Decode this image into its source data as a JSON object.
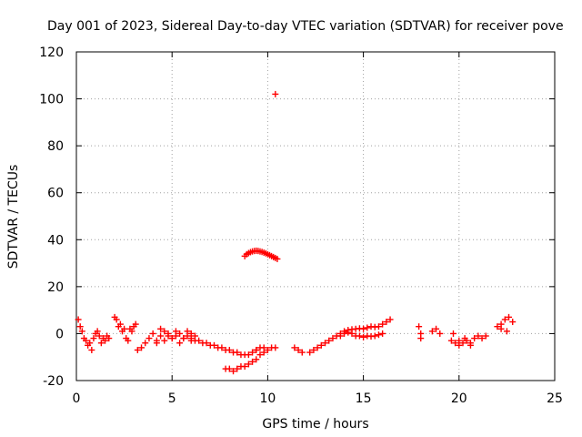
{
  "chart_data": {
    "type": "scatter",
    "title": "Day 001 of 2023, Sidereal Day-to-day VTEC variation (SDTVAR) for receiver pove",
    "xlabel": "GPS time / hours",
    "ylabel": "SDTVAR / TECUs",
    "xlim": [
      0,
      25
    ],
    "ylim": [
      -20,
      120
    ],
    "xticks": [
      "0",
      "5",
      "10",
      "15",
      "20",
      "25"
    ],
    "yticks": [
      "-20",
      "0",
      "20",
      "40",
      "60",
      "80",
      "100",
      "120"
    ],
    "grid": true,
    "marker": "plus",
    "series": [
      {
        "name": "SDTVAR",
        "color": "#ff0000",
        "x": [
          0.1,
          0.2,
          0.3,
          0.4,
          0.5,
          0.6,
          0.7,
          0.8,
          0.9,
          1.0,
          1.1,
          1.2,
          1.3,
          1.4,
          1.5,
          1.6,
          1.7,
          2.0,
          2.1,
          2.2,
          2.3,
          2.4,
          2.5,
          2.6,
          2.7,
          2.8,
          2.9,
          3.0,
          3.1,
          3.2,
          3.4,
          3.6,
          3.8,
          4.0,
          4.2,
          4.4,
          4.6,
          4.8,
          5.0,
          5.2,
          5.4,
          5.6,
          5.8,
          6.0,
          4.2,
          4.4,
          4.6,
          4.8,
          5.0,
          5.2,
          5.4,
          5.6,
          5.8,
          6.0,
          6.2,
          6.0,
          6.2,
          6.4,
          6.6,
          6.8,
          7.0,
          7.2,
          7.4,
          7.6,
          7.8,
          8.0,
          8.2,
          8.4,
          8.6,
          8.8,
          9.0,
          9.2,
          9.4,
          7.8,
          8.0,
          8.2,
          8.4,
          8.6,
          8.8,
          9.0,
          9.2,
          9.4,
          9.6,
          9.8,
          9.4,
          9.6,
          9.8,
          10.0,
          10.2,
          10.4,
          8.8,
          8.9,
          9.0,
          9.1,
          9.2,
          9.3,
          9.4,
          9.5,
          9.6,
          9.7,
          9.8,
          9.9,
          10.0,
          10.1,
          10.2,
          10.3,
          10.4,
          10.5,
          10.4,
          11.4,
          11.6,
          11.8,
          12.2,
          12.4,
          12.6,
          12.8,
          13.0,
          13.2,
          13.4,
          13.6,
          13.8,
          14.0,
          14.2,
          14.4,
          14.6,
          14.8,
          15.0,
          15.2,
          15.4,
          15.6,
          15.8,
          16.0,
          16.2,
          16.4,
          13.8,
          14.0,
          14.2,
          14.4,
          14.6,
          14.8,
          15.0,
          15.2,
          15.4,
          15.6,
          15.8,
          16.0,
          17.9,
          18.0,
          18.0,
          18.6,
          18.8,
          19.0,
          19.6,
          19.8,
          20.0,
          20.2,
          20.4,
          20.6,
          20.8,
          21.0,
          21.2,
          19.7,
          20.0,
          20.3,
          20.6,
          21.4,
          22.0,
          22.2,
          22.4,
          22.6,
          22.8,
          22.2,
          22.5
        ],
        "y": [
          6,
          3,
          1,
          -2,
          -3,
          -5,
          -4,
          -7,
          -2,
          0,
          1,
          -1,
          -4,
          -2,
          -3,
          -1,
          -2,
          7,
          6,
          3,
          4,
          1,
          2,
          -2,
          -3,
          2,
          1,
          3,
          4,
          -7,
          -6,
          -4,
          -2,
          0,
          -3,
          2,
          1,
          0,
          -2,
          -1,
          -4,
          -2,
          -1,
          -3,
          -4,
          -1,
          -3,
          -1,
          -2,
          1,
          0,
          -2,
          1,
          0,
          -1,
          -2,
          -3,
          -3,
          -4,
          -4,
          -5,
          -5,
          -6,
          -6,
          -7,
          -7,
          -8,
          -8,
          -9,
          -9,
          -9,
          -8,
          -7,
          -15,
          -15,
          -16,
          -15,
          -14,
          -14,
          -13,
          -12,
          -11,
          -9,
          -8,
          -7,
          -6,
          -6,
          -7,
          -6,
          -6,
          33,
          33.8,
          34.3,
          34.7,
          35,
          35.2,
          35.3,
          35.2,
          35,
          34.8,
          34.5,
          34.2,
          33.8,
          33.4,
          33,
          32.6,
          32.2,
          31.8,
          102,
          -6,
          -7,
          -8,
          -8,
          -7,
          -6,
          -5,
          -4,
          -3,
          -2,
          -1,
          0,
          1,
          1.5,
          1.8,
          2,
          2.2,
          2,
          2.5,
          3,
          2.8,
          3,
          4,
          5,
          6,
          -1,
          0,
          0.5,
          0,
          -1,
          -1,
          -1.5,
          -1,
          -1.2,
          -1,
          -0.5,
          0,
          3,
          0,
          -2,
          1,
          2,
          0,
          -3,
          -4,
          -5,
          -4,
          -3,
          -5,
          -2,
          -1,
          -2,
          0,
          -3,
          -2,
          -4,
          -1,
          3,
          4,
          6,
          7,
          5,
          2,
          1
        ]
      }
    ]
  }
}
